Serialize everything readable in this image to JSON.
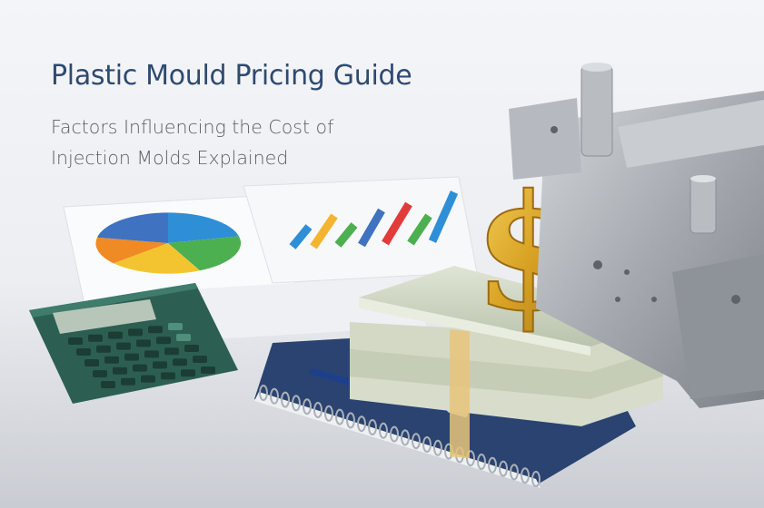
{
  "hero": {
    "title": "Plastic Mould Pricing Guide",
    "subtitle_lines": [
      "Factors Influencing the Cost of",
      "Injection Molds Explained"
    ]
  },
  "colors": {
    "title": "#2e4a6f",
    "subtitle": "#5a5e66",
    "calculator": "#2f6a5a",
    "notebook": "#2a4370",
    "dollar_sign": "#e0b12e",
    "mold_steel": "#a9adb2"
  },
  "objects": [
    "pie-chart-document",
    "bar-chart-document",
    "calculator",
    "notebook",
    "pen",
    "banknote-stack",
    "gold-dollar-sign",
    "injection-mold"
  ]
}
